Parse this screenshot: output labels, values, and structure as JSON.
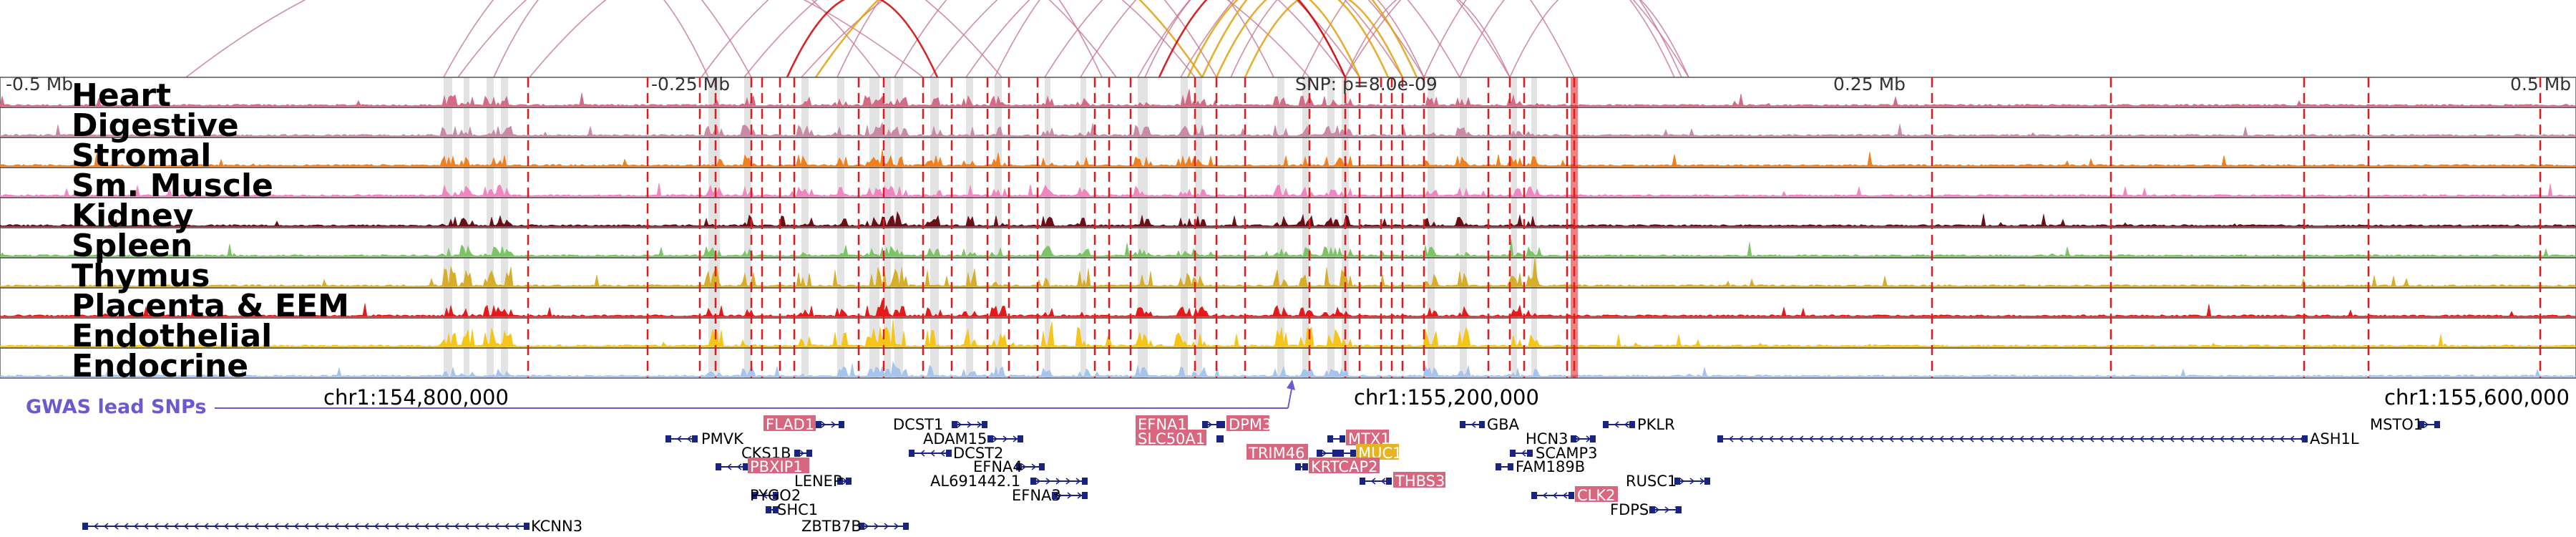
{
  "scale": {
    "left": "-0.5 Mb",
    "mid_left": "-0.25 Mb",
    "center": "SNP: p=8.0e-09",
    "mid_right": "0.25 Mb",
    "right": "0.5 Mb"
  },
  "tracks": [
    {
      "name": "Heart",
      "color": "#d46a86"
    },
    {
      "name": "Digestive",
      "color": "#c98aa5"
    },
    {
      "name": "Stromal",
      "color": "#f07f1e"
    },
    {
      "name": "Sm. Muscle",
      "color": "#ef86c0"
    },
    {
      "name": "Kidney",
      "color": "#6b0f17"
    },
    {
      "name": "Spleen",
      "color": "#7dc466"
    },
    {
      "name": "Thymus",
      "color": "#d6ae2b"
    },
    {
      "name": "Placenta & EEM",
      "color": "#e31a1c"
    },
    {
      "name": "Endothelial",
      "color": "#f5c518"
    },
    {
      "name": "Endocrine",
      "color": "#a6c4ee"
    }
  ],
  "gwas_label": "GWAS lead SNPs",
  "coordinates": [
    "chr1:154,800,000",
    "chr1:155,200,000",
    "chr1:155,600,000"
  ],
  "genes": [
    {
      "name": "FLAD1",
      "highlight": true
    },
    {
      "name": "PMVK",
      "highlight": false
    },
    {
      "name": "CKS1B",
      "highlight": false
    },
    {
      "name": "PBXIP1",
      "highlight": true
    },
    {
      "name": "LENEP",
      "highlight": false
    },
    {
      "name": "PYGO2",
      "highlight": false
    },
    {
      "name": "SHC1",
      "highlight": false
    },
    {
      "name": "ZBTB7B",
      "highlight": false
    },
    {
      "name": "KCNN3",
      "highlight": false
    },
    {
      "name": "DCST1",
      "highlight": false
    },
    {
      "name": "ADAM15",
      "highlight": false
    },
    {
      "name": "DCST2",
      "highlight": false
    },
    {
      "name": "EFNA4",
      "highlight": false
    },
    {
      "name": "AL691442.1",
      "highlight": false
    },
    {
      "name": "EFNA3",
      "highlight": false
    },
    {
      "name": "EFNA1",
      "highlight": true
    },
    {
      "name": "SLC50A1",
      "highlight": true
    },
    {
      "name": "DPM3",
      "highlight": true
    },
    {
      "name": "TRIM46",
      "highlight": true
    },
    {
      "name": "MTX1",
      "highlight": true
    },
    {
      "name": "MUC1",
      "highlight": true
    },
    {
      "name": "KRTCAP2",
      "highlight": true
    },
    {
      "name": "THBS3",
      "highlight": true
    },
    {
      "name": "GBA",
      "highlight": false
    },
    {
      "name": "HCN3",
      "highlight": false
    },
    {
      "name": "PKLR",
      "highlight": false
    },
    {
      "name": "SCAMP3",
      "highlight": false
    },
    {
      "name": "FAM189B",
      "highlight": false
    },
    {
      "name": "RUSC1",
      "highlight": false
    },
    {
      "name": "CLK2",
      "highlight": true
    },
    {
      "name": "FDPS",
      "highlight": false
    },
    {
      "name": "ASH1L",
      "highlight": false
    },
    {
      "name": "MSTO1",
      "highlight": false
    }
  ],
  "colors": {
    "highlight_box": "#d9667f",
    "highlight_box_yellow": "#e6b422",
    "gwas_line": "#6a5acd",
    "gene_model": "#1a237e",
    "snp_line": "#e31a1c",
    "shade": "#d9d9d9",
    "arc_main": "#c97a90",
    "arc_gold": "#e0a010",
    "arc_red": "#cc0000"
  }
}
